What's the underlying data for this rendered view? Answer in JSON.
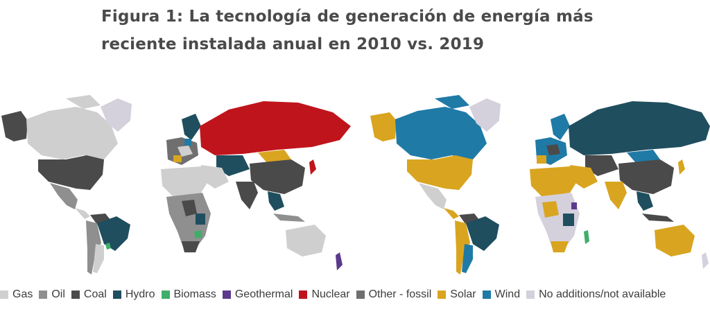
{
  "title": "Figura 1: La tecnología de generación de energía más reciente instalada anual en 2010 vs. 2019",
  "legend": [
    {
      "label": "Gas",
      "color": "#cfcfcf"
    },
    {
      "label": "Oil",
      "color": "#8f8f8f"
    },
    {
      "label": "Coal",
      "color": "#4a4a4a"
    },
    {
      "label": "Hydro",
      "color": "#1f4e5f"
    },
    {
      "label": "Biomass",
      "color": "#3fae6a"
    },
    {
      "label": "Geothermal",
      "color": "#5b3a8c"
    },
    {
      "label": "Nuclear",
      "color": "#c0141c"
    },
    {
      "label": "Other - fossil",
      "color": "#6f6f6f"
    },
    {
      "label": "Solar",
      "color": "#d9a520"
    },
    {
      "label": "Wind",
      "color": "#1f7aa6"
    },
    {
      "label": "No additions/not available",
      "color": "#d4d0dc"
    }
  ]
}
